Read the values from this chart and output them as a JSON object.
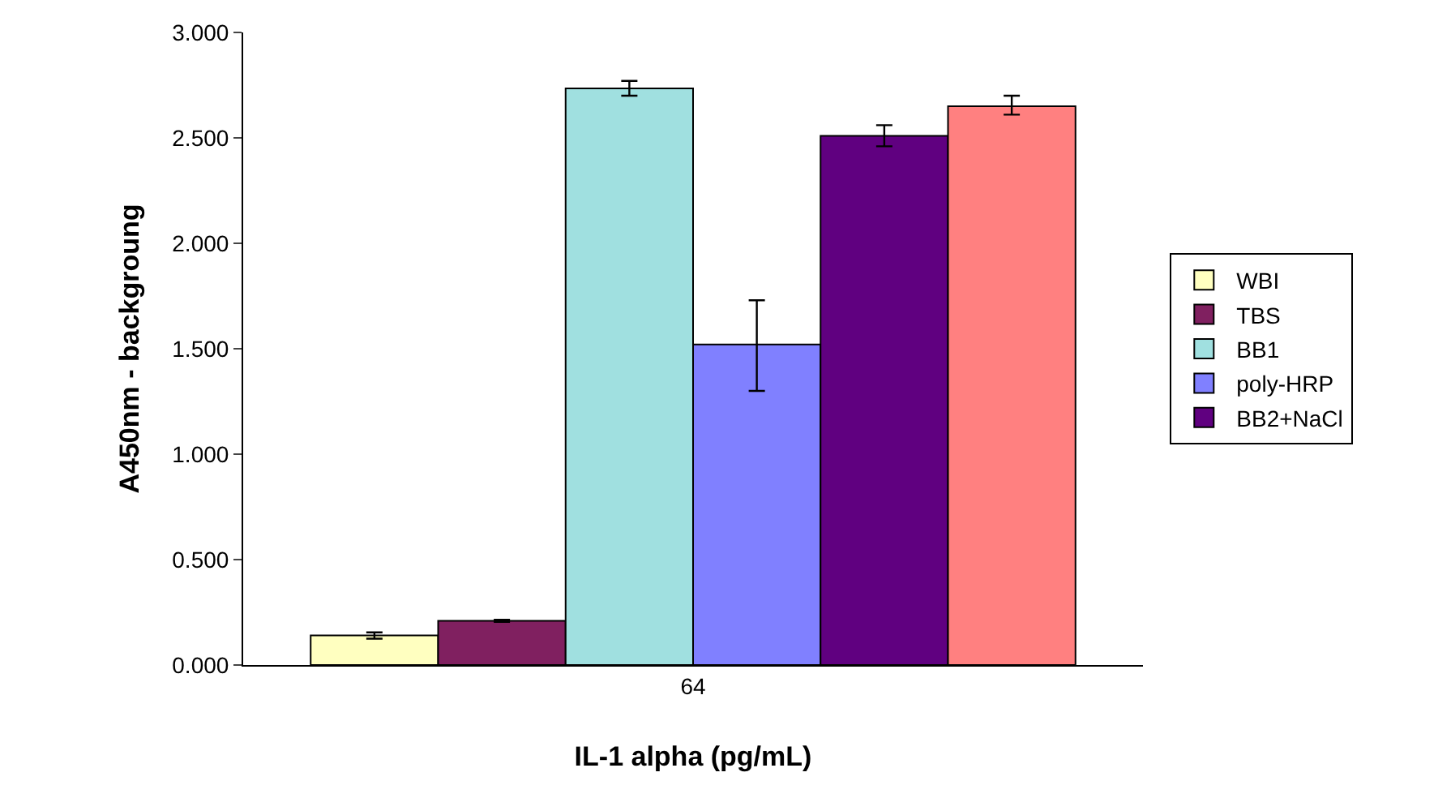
{
  "chart_data": {
    "type": "bar",
    "xlabel": "IL-1 alpha (pg/mL)",
    "ylabel": "A450nm - backgroung",
    "categories": [
      "64"
    ],
    "series": [
      {
        "name": "WBI",
        "color": "#ffffc0",
        "values": [
          0.14
        ],
        "errors": [
          [
            0.125,
            0.155
          ]
        ]
      },
      {
        "name": "TBS",
        "color": "#802060",
        "values": [
          0.21
        ],
        "errors": [
          [
            0.205,
            0.215
          ]
        ]
      },
      {
        "name": "BB1",
        "color": "#a0e0e0",
        "values": [
          2.735
        ],
        "errors": [
          [
            2.7,
            2.77
          ]
        ]
      },
      {
        "name": "poly-HRP",
        "color": "#8080ff",
        "values": [
          1.52
        ],
        "errors": [
          [
            1.3,
            1.73
          ]
        ]
      },
      {
        "name": "BB2+NaCl",
        "color": "#600080",
        "values": [
          2.51
        ],
        "errors": [
          [
            2.46,
            2.56
          ]
        ]
      },
      {
        "color": "#ff8080",
        "values": [
          2.65
        ],
        "errors": [
          [
            2.61,
            2.7
          ]
        ]
      }
    ],
    "ylim": [
      0,
      3
    ],
    "yticks": [
      {
        "value": 0,
        "label": "0.000"
      },
      {
        "value": 0.5,
        "label": "0.500"
      },
      {
        "value": 1,
        "label": "1.000"
      },
      {
        "value": 1.5,
        "label": "1.500"
      },
      {
        "value": 2,
        "label": "2.000"
      },
      {
        "value": 2.5,
        "label": "2.500"
      },
      {
        "value": 3,
        "label": "3.000"
      }
    ],
    "grid": false,
    "legend": "right"
  }
}
